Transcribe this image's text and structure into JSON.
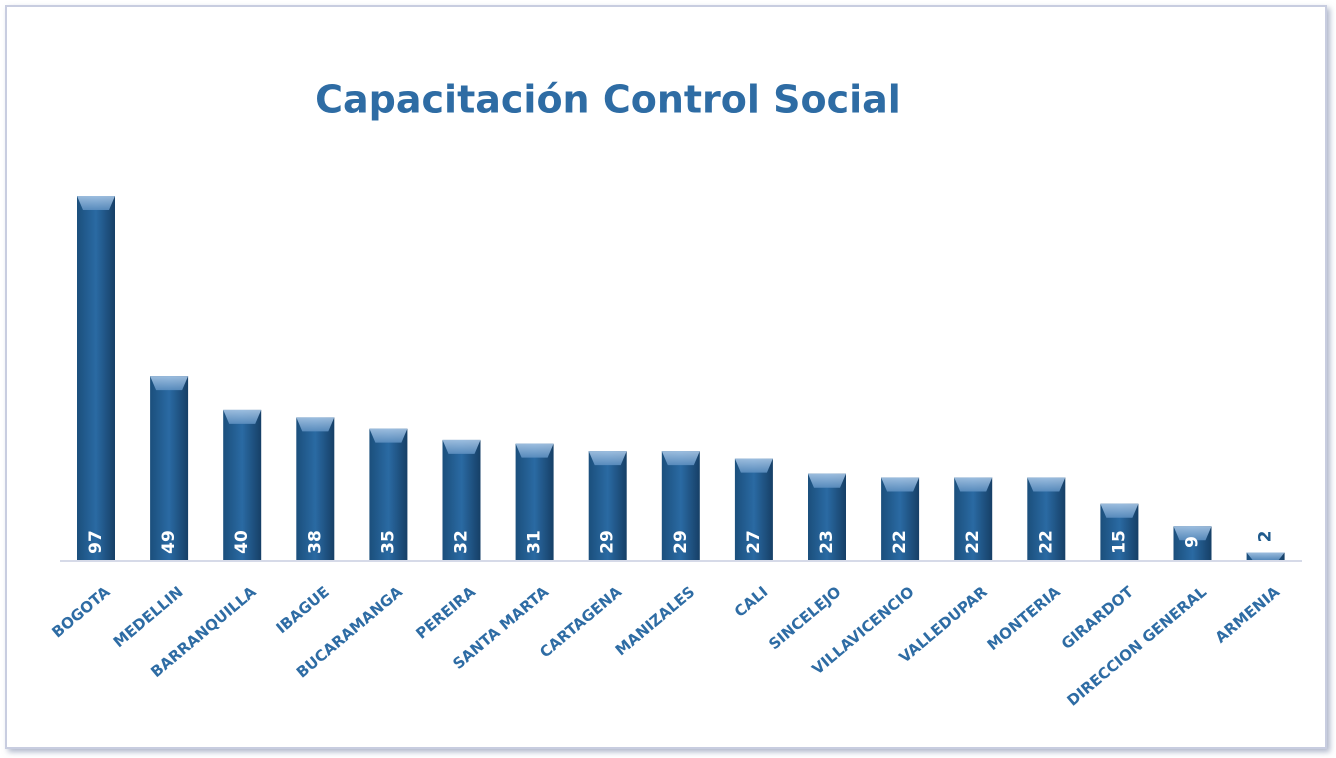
{
  "chart_data": {
    "type": "bar",
    "title": "Capacitación Control Social",
    "categories": [
      "BOGOTA",
      "MEDELLIN",
      "BARRANQUILLA",
      "IBAGUE",
      "BUCARAMANGA",
      "PEREIRA",
      "SANTA MARTA",
      "CARTAGENA",
      "MANIZALES",
      "CALI",
      "SINCELEJO",
      "VILLAVICENCIO",
      "VALLEDUPAR",
      "MONTERIA",
      "GIRARDOT",
      "DIRECCION GENERAL",
      "ARMENIA"
    ],
    "values": [
      97,
      49,
      40,
      38,
      35,
      32,
      31,
      29,
      29,
      27,
      23,
      22,
      22,
      22,
      15,
      9,
      2
    ],
    "color": "#1f5a8c"
  }
}
